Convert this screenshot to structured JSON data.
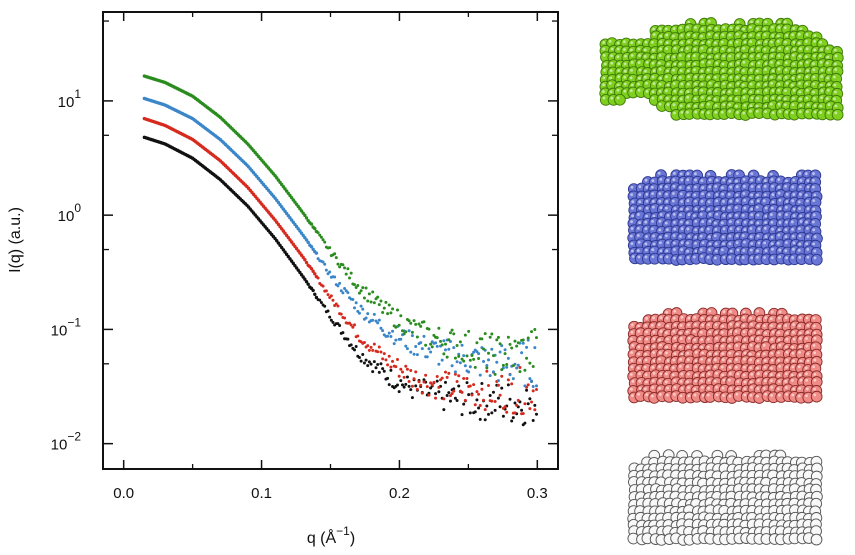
{
  "chart_data": {
    "type": "scatter",
    "ylabel": "I(q) (a.u.)",
    "xlabel_main": "q (Å",
    "xlabel_exp": "−1",
    "xlabel_close": ")",
    "x_scale": "linear",
    "y_scale": "log",
    "xlim": [
      -0.015,
      0.315
    ],
    "ylim": [
      0.006,
      60
    ],
    "xticks": [
      {
        "value": 0.0,
        "label": "0.0"
      },
      {
        "value": 0.1,
        "label": "0.1"
      },
      {
        "value": 0.2,
        "label": "0.2"
      },
      {
        "value": 0.3,
        "label": "0.3"
      }
    ],
    "yticks": [
      {
        "value": 10,
        "base": "10",
        "exp": "1"
      },
      {
        "value": 1,
        "base": "10",
        "exp": "0"
      },
      {
        "value": 0.1,
        "base": "10",
        "exp": "−1"
      },
      {
        "value": 0.01,
        "base": "10",
        "exp": "−2"
      }
    ],
    "grid": false,
    "series": [
      {
        "color": "#2a8c1e",
        "points": [
          [
            0.015,
            16.5
          ],
          [
            0.03,
            14.5
          ],
          [
            0.05,
            11.0
          ],
          [
            0.07,
            7.2
          ],
          [
            0.09,
            4.2
          ],
          [
            0.11,
            2.2
          ],
          [
            0.13,
            1.05
          ],
          [
            0.15,
            0.48
          ],
          [
            0.17,
            0.24
          ],
          [
            0.19,
            0.145
          ],
          [
            0.21,
            0.1
          ],
          [
            0.23,
            0.08
          ],
          [
            0.25,
            0.07
          ],
          [
            0.27,
            0.06
          ],
          [
            0.29,
            0.062
          ],
          [
            0.3,
            0.065
          ]
        ]
      },
      {
        "color": "#3a86c8",
        "points": [
          [
            0.015,
            10.5
          ],
          [
            0.03,
            9.2
          ],
          [
            0.05,
            7.0
          ],
          [
            0.07,
            4.6
          ],
          [
            0.09,
            2.7
          ],
          [
            0.11,
            1.4
          ],
          [
            0.13,
            0.67
          ],
          [
            0.15,
            0.3
          ],
          [
            0.17,
            0.155
          ],
          [
            0.19,
            0.1
          ],
          [
            0.21,
            0.075
          ],
          [
            0.23,
            0.062
          ],
          [
            0.25,
            0.055
          ],
          [
            0.27,
            0.05
          ],
          [
            0.29,
            0.05
          ],
          [
            0.3,
            0.052
          ]
        ]
      },
      {
        "color": "#d62a1e",
        "points": [
          [
            0.015,
            7.0
          ],
          [
            0.03,
            6.1
          ],
          [
            0.05,
            4.6
          ],
          [
            0.07,
            3.0
          ],
          [
            0.09,
            1.75
          ],
          [
            0.11,
            0.9
          ],
          [
            0.13,
            0.43
          ],
          [
            0.15,
            0.19
          ],
          [
            0.17,
            0.09
          ],
          [
            0.19,
            0.055
          ],
          [
            0.21,
            0.038
          ],
          [
            0.23,
            0.032
          ],
          [
            0.25,
            0.03
          ],
          [
            0.27,
            0.029
          ],
          [
            0.29,
            0.029
          ],
          [
            0.3,
            0.03
          ]
        ]
      },
      {
        "color": "#111111",
        "points": [
          [
            0.015,
            4.8
          ],
          [
            0.03,
            4.2
          ],
          [
            0.05,
            3.15
          ],
          [
            0.07,
            2.05
          ],
          [
            0.09,
            1.2
          ],
          [
            0.11,
            0.62
          ],
          [
            0.13,
            0.29
          ],
          [
            0.15,
            0.13
          ],
          [
            0.17,
            0.063
          ],
          [
            0.19,
            0.04
          ],
          [
            0.21,
            0.03
          ],
          [
            0.23,
            0.026
          ],
          [
            0.25,
            0.024
          ],
          [
            0.27,
            0.023
          ],
          [
            0.29,
            0.023
          ],
          [
            0.3,
            0.024
          ]
        ]
      }
    ]
  },
  "models": [
    {
      "name": "green",
      "color": "#7fcf1f",
      "shade": "#3f7a0a"
    },
    {
      "name": "blue",
      "color": "#6a76d6",
      "shade": "#2d3890"
    },
    {
      "name": "red",
      "color": "#f08a86",
      "shade": "#8a2c2a"
    },
    {
      "name": "white",
      "color": "#f7f7f7",
      "shade": "#555555"
    }
  ]
}
